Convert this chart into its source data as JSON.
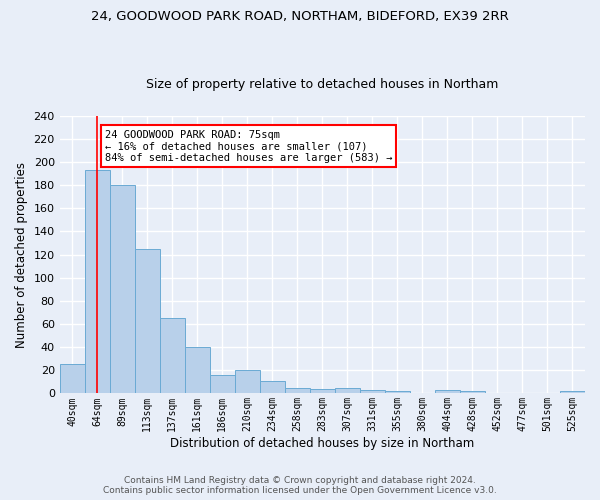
{
  "title1": "24, GOODWOOD PARK ROAD, NORTHAM, BIDEFORD, EX39 2RR",
  "title2": "Size of property relative to detached houses in Northam",
  "xlabel": "Distribution of detached houses by size in Northam",
  "ylabel": "Number of detached properties",
  "bar_labels": [
    "40sqm",
    "64sqm",
    "89sqm",
    "113sqm",
    "137sqm",
    "161sqm",
    "186sqm",
    "210sqm",
    "234sqm",
    "258sqm",
    "283sqm",
    "307sqm",
    "331sqm",
    "355sqm",
    "380sqm",
    "404sqm",
    "428sqm",
    "452sqm",
    "477sqm",
    "501sqm",
    "525sqm"
  ],
  "bar_values": [
    25,
    193,
    180,
    125,
    65,
    40,
    16,
    20,
    11,
    5,
    4,
    5,
    3,
    2,
    0,
    3,
    2,
    0,
    0,
    0,
    2
  ],
  "bar_color": "#b8d0ea",
  "bar_edge_color": "#6aaad4",
  "ylim": [
    0,
    240
  ],
  "yticks": [
    0,
    20,
    40,
    60,
    80,
    100,
    120,
    140,
    160,
    180,
    200,
    220,
    240
  ],
  "red_line_x": 1.0,
  "annotation_text": "24 GOODWOOD PARK ROAD: 75sqm\n← 16% of detached houses are smaller (107)\n84% of semi-detached houses are larger (583) →",
  "annotation_box_color": "white",
  "annotation_box_edge_color": "red",
  "footnote1": "Contains HM Land Registry data © Crown copyright and database right 2024.",
  "footnote2": "Contains public sector information licensed under the Open Government Licence v3.0.",
  "bg_color": "#e8eef8",
  "grid_color": "white",
  "title1_fontsize": 9.5,
  "title2_fontsize": 9,
  "xlabel_fontsize": 8.5,
  "ylabel_fontsize": 8.5,
  "footnote_fontsize": 6.5
}
